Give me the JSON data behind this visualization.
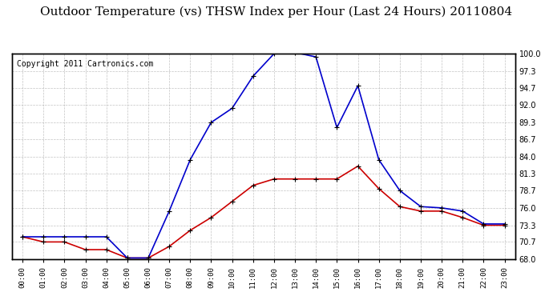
{
  "title": "Outdoor Temperature (vs) THSW Index per Hour (Last 24 Hours) 20110804",
  "copyright": "Copyright 2011 Cartronics.com",
  "hours": [
    "00:00",
    "01:00",
    "02:00",
    "03:00",
    "04:00",
    "05:00",
    "06:00",
    "07:00",
    "08:00",
    "09:00",
    "10:00",
    "11:00",
    "12:00",
    "13:00",
    "14:00",
    "15:00",
    "16:00",
    "17:00",
    "18:00",
    "19:00",
    "20:00",
    "21:00",
    "22:00",
    "23:00"
  ],
  "temp_red": [
    71.5,
    70.7,
    70.7,
    69.5,
    69.5,
    68.2,
    68.2,
    70.0,
    72.5,
    74.5,
    77.0,
    79.5,
    80.5,
    80.5,
    80.5,
    80.5,
    82.5,
    79.0,
    76.2,
    75.5,
    75.5,
    74.5,
    73.3,
    73.3
  ],
  "thsw_blue": [
    71.5,
    71.5,
    71.5,
    71.5,
    71.5,
    68.2,
    68.2,
    75.5,
    83.5,
    89.3,
    91.5,
    96.5,
    100.0,
    100.2,
    99.5,
    88.5,
    95.0,
    83.5,
    78.7,
    76.2,
    76.0,
    75.5,
    73.5,
    73.5
  ],
  "ylim": [
    68.0,
    100.0
  ],
  "yticks": [
    68.0,
    70.7,
    73.3,
    76.0,
    78.7,
    81.3,
    84.0,
    86.7,
    89.3,
    92.0,
    94.7,
    97.3,
    100.0
  ],
  "bg_color": "#ffffff",
  "grid_color": "#aaaaaa",
  "line_red": "#cc0000",
  "line_blue": "#0000cc",
  "title_fontsize": 11,
  "copyright_fontsize": 7
}
